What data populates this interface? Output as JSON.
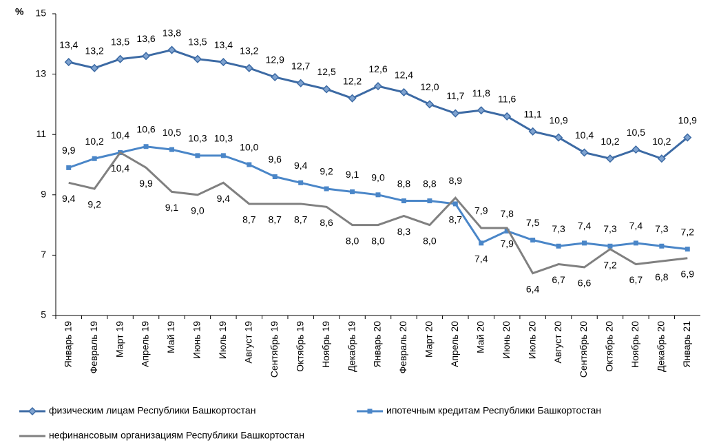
{
  "chart_data": {
    "type": "line",
    "y_label": "%",
    "categories": [
      "Январь 19",
      "Февраль 19",
      "Март 19",
      "Апрель 19",
      "Май 19",
      "Июнь 19",
      "Июль 19",
      "Август 19",
      "Сентябрь 19",
      "Октябрь 19",
      "Ноябрь 19",
      "Декабрь 19",
      "Январь 20",
      "Февраль 20",
      "Март 20",
      "Апрель 20",
      "Май 20",
      "Июнь 20",
      "Июль 20",
      "Август 20",
      "Сентябрь 20",
      "Октябрь 20",
      "Ноябрь 20",
      "Декабрь 20",
      "Январь 21"
    ],
    "ylim": [
      5,
      15
    ],
    "yticks": [
      5,
      7,
      9,
      11,
      13,
      15
    ],
    "series": [
      {
        "name": "физическим лицам Республики Башкортостан",
        "color": "#3c6aa4",
        "marker": "diamond",
        "values": [
          13.4,
          13.2,
          13.5,
          13.6,
          13.8,
          13.5,
          13.4,
          13.2,
          12.9,
          12.7,
          12.5,
          12.2,
          12.6,
          12.4,
          12.0,
          11.7,
          11.8,
          11.6,
          11.1,
          10.9,
          10.4,
          10.2,
          10.5,
          10.2,
          10.9
        ],
        "value_labels": [
          "13,4",
          "13,2",
          "13,5",
          "13,6",
          "13,8",
          "13,5",
          "13,4",
          "13,2",
          "12,9",
          "12,7",
          "12,5",
          "12,2",
          "12,6",
          "12,4",
          "12,0",
          "11,7",
          "11,8",
          "11,6",
          "11,1",
          "10,9",
          "10,4",
          "10,2",
          "10,5",
          "10,2",
          "10,9"
        ]
      },
      {
        "name": "ипотечным кредитам Республики Башкортостан",
        "color": "#4a86c8",
        "marker": "square",
        "values": [
          9.9,
          10.2,
          10.4,
          10.6,
          10.5,
          10.3,
          10.3,
          10.0,
          9.6,
          9.4,
          9.2,
          9.1,
          9.0,
          8.8,
          8.8,
          8.7,
          7.4,
          7.8,
          7.5,
          7.3,
          7.4,
          7.3,
          7.4,
          7.3,
          7.2
        ],
        "value_labels": [
          "9,9",
          "10,2",
          "10,4",
          "10,6",
          "10,5",
          "10,3",
          "10,3",
          "10,0",
          "9,6",
          "9,4",
          "9,2",
          "9,1",
          "9,0",
          "8,8",
          "8,8",
          "8,7",
          "7,4",
          "7,8",
          "7,5",
          "7,3",
          "7,4",
          "7,3",
          "7,4",
          "7,3",
          "7,2"
        ]
      },
      {
        "name": "нефинансовым организациям Республики Башкортостан",
        "color": "#808080",
        "marker": "none",
        "values": [
          9.4,
          9.2,
          10.4,
          9.9,
          9.1,
          9.0,
          9.4,
          8.7,
          8.7,
          8.7,
          8.6,
          8.0,
          8.0,
          8.3,
          8.0,
          8.9,
          7.9,
          7.9,
          6.4,
          6.7,
          6.6,
          7.2,
          6.7,
          6.8,
          6.9
        ],
        "value_labels": [
          "9,4",
          "9,2",
          "10,4",
          "9,9",
          "9,1",
          "9,0",
          "9,4",
          "8,7",
          "8,7",
          "8,7",
          "8,6",
          "8,0",
          "8,0",
          "8,3",
          "8,0",
          "8,9",
          "7,9",
          "7,9",
          "6,4",
          "6,7",
          "6,6",
          "7,2",
          "6,7",
          "6,8",
          "6,9"
        ]
      }
    ]
  }
}
